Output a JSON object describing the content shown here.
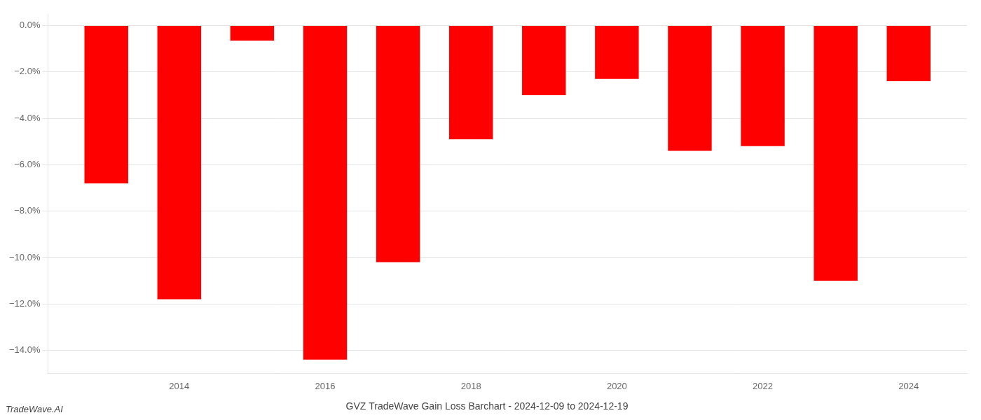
{
  "chart_data": {
    "type": "bar",
    "title": "GVZ TradeWave Gain Loss Barchart - 2024-12-09 to 2024-12-19",
    "annotations": [
      "TradeWave.AI"
    ],
    "x": [
      2013,
      2014,
      2015,
      2016,
      2017,
      2018,
      2019,
      2020,
      2021,
      2022,
      2023,
      2024
    ],
    "values": [
      -6.8,
      -11.8,
      -0.65,
      -14.4,
      -10.2,
      -4.9,
      -3.0,
      -2.3,
      -5.4,
      -5.2,
      -11.0,
      -2.4
    ],
    "color": "#ff0000",
    "xlim": [
      2012.2,
      2024.8
    ],
    "xticks": [
      2014,
      2016,
      2018,
      2020,
      2022,
      2024
    ],
    "ylim": [
      -15.0,
      0.5
    ],
    "yticks": [
      {
        "value": 0.0,
        "label": "0.0%"
      },
      {
        "value": -2.0,
        "label": "−2.0%"
      },
      {
        "value": -4.0,
        "label": "−4.0%"
      },
      {
        "value": -6.0,
        "label": "−6.0%"
      },
      {
        "value": -8.0,
        "label": "−8.0%"
      },
      {
        "value": -10.0,
        "label": "−10.0%"
      },
      {
        "value": -12.0,
        "label": "−12.0%"
      },
      {
        "value": -14.0,
        "label": "−14.0%"
      }
    ],
    "grid": true
  }
}
